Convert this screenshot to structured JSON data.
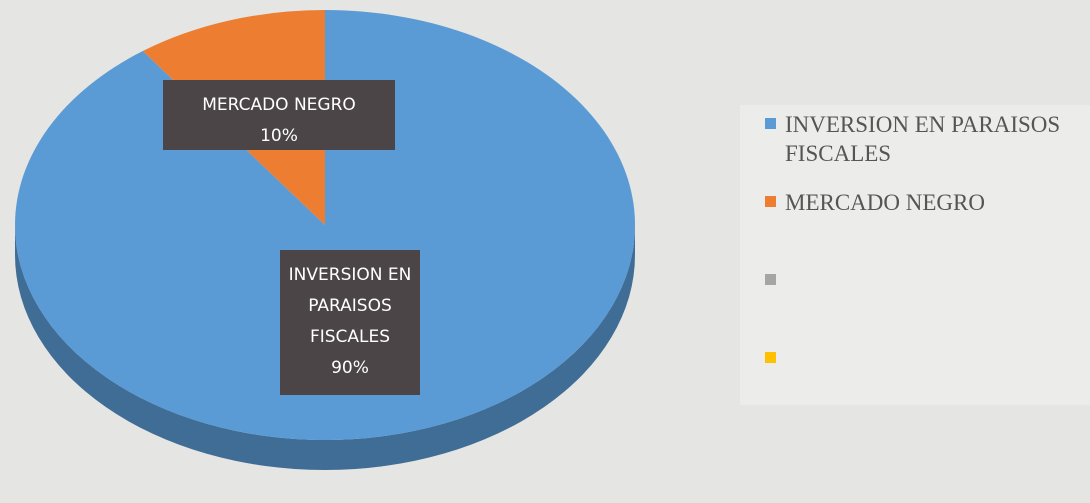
{
  "chart_data": {
    "type": "pie",
    "categories": [
      "INVERSION EN PARAISOS FISCALES",
      "MERCADO NEGRO",
      null,
      null
    ],
    "values": [
      90,
      10,
      0,
      0
    ],
    "value_labels": [
      "90%",
      "10%",
      null,
      null
    ],
    "colors": [
      "#5b9bd5",
      "#ed7d31",
      "#a5a5a5",
      "#ffc000"
    ],
    "legend": "right"
  }
}
